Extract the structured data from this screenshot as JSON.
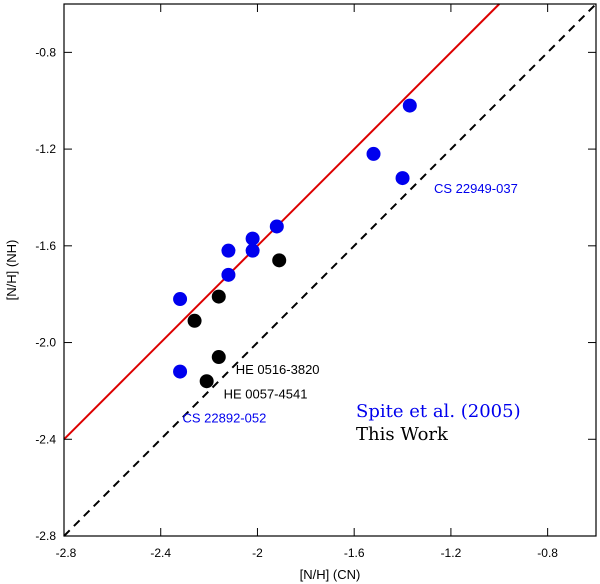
{
  "chart_data": {
    "type": "scatter",
    "title": "",
    "xlabel": "[N/H] (CN)",
    "ylabel": "[N/H] (NH)",
    "xlim": [
      -2.8,
      -0.6
    ],
    "ylim": [
      -2.8,
      -0.6
    ],
    "xticks": [
      -2.8,
      -2.4,
      -2.0,
      -1.6,
      -1.2,
      -0.8
    ],
    "xtick_labels": [
      "-2.8",
      "-2.4",
      "-2",
      "-1.6",
      "-1.2",
      "-0.8"
    ],
    "yticks": [
      -2.8,
      -2.4,
      -2.0,
      -1.6,
      -1.2,
      -0.8
    ],
    "ytick_labels": [
      "-2.8",
      "-2.4",
      "-2.0",
      "-1.6",
      "-1.2",
      "-0.8"
    ],
    "grid": false,
    "series": [
      {
        "name": "Spite et al. (2005)",
        "color": "#0000ee",
        "points": [
          {
            "x": -2.32,
            "y": -1.82
          },
          {
            "x": -2.32,
            "y": -2.12
          },
          {
            "x": -2.12,
            "y": -1.62
          },
          {
            "x": -2.12,
            "y": -1.72
          },
          {
            "x": -2.02,
            "y": -1.57
          },
          {
            "x": -2.02,
            "y": -1.62
          },
          {
            "x": -1.92,
            "y": -1.52
          },
          {
            "x": -1.52,
            "y": -1.22
          },
          {
            "x": -1.4,
            "y": -1.32
          },
          {
            "x": -1.37,
            "y": -1.02
          }
        ]
      },
      {
        "name": "This Work",
        "color": "#000000",
        "points": [
          {
            "x": -2.26,
            "y": -1.91
          },
          {
            "x": -2.16,
            "y": -1.81
          },
          {
            "x": -2.16,
            "y": -2.06
          },
          {
            "x": -2.21,
            "y": -2.16
          },
          {
            "x": -1.91,
            "y": -1.66
          }
        ]
      }
    ],
    "lines": [
      {
        "name": "one-to-one",
        "style": "dashed",
        "color": "#000000",
        "from": {
          "x": -2.8,
          "y": -2.8
        },
        "to": {
          "x": -0.6,
          "y": -0.6
        }
      },
      {
        "name": "fit",
        "style": "solid",
        "color": "#dd0000",
        "from": {
          "x": -2.8,
          "y": -2.4
        },
        "to": {
          "x": -0.98,
          "y": -0.58
        }
      }
    ],
    "annotations": [
      {
        "text": "CS 22949-037",
        "color": "#0000ee",
        "x": -1.27,
        "y": -1.36
      },
      {
        "text": "HE 0516-3820",
        "color": "#000000",
        "x": -2.09,
        "y": -2.11
      },
      {
        "text": "HE 0057-4541",
        "color": "#000000",
        "x": -2.14,
        "y": -2.21
      },
      {
        "text": "CS 22892-052",
        "color": "#0000ee",
        "x": -2.31,
        "y": -2.31
      }
    ],
    "legend": {
      "placement": "bottom-right",
      "entries": [
        {
          "text": "Spite et al. (2005)",
          "color": "#0000ee"
        },
        {
          "text": "This Work",
          "color": "#000000"
        }
      ]
    }
  }
}
